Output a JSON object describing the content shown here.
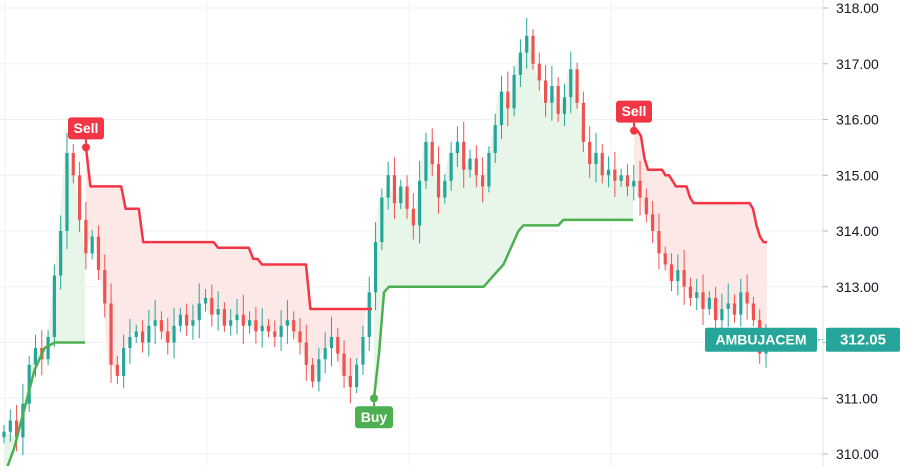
{
  "chart_data": {
    "type": "candlestick",
    "symbol": "AMBUJACEM",
    "last_price": "312.05",
    "ylim": [
      310.0,
      318.0
    ],
    "y_ticks": [
      "310.00",
      "311.00",
      "312.00",
      "313.00",
      "314.00",
      "315.00",
      "316.00",
      "317.00",
      "318.00"
    ],
    "grid": true,
    "price_axis": "right",
    "colors": {
      "up": "#26a69a",
      "down": "#ef5350",
      "sell_line": "#f23645",
      "buy_line": "#4caf50",
      "sell_fill": "#fde8e8",
      "buy_fill": "#e8f5e9",
      "label_text": "#ffffff",
      "axis_text": "#131722",
      "grid": "#eef0f3"
    },
    "candle_seed": [
      310.4,
      310.6,
      310.3,
      310.9,
      311.6,
      311.9,
      311.7,
      312.1,
      313.2,
      314.0,
      315.4,
      315.0,
      314.2,
      313.6,
      313.9,
      313.3,
      312.7,
      311.6,
      311.4,
      311.9,
      312.1,
      312.2,
      312.0,
      312.3,
      312.4,
      312.2,
      312.0,
      312.3,
      312.5,
      312.3,
      312.4,
      312.7,
      312.8,
      312.5,
      312.6,
      312.3,
      312.4,
      312.5,
      312.3,
      312.4,
      312.2,
      312.3,
      312.2,
      312.1,
      312.3,
      312.4,
      312.2,
      312.0,
      311.6,
      311.3,
      311.7,
      311.9,
      312.1,
      311.8,
      311.4,
      311.2,
      311.6,
      312.1,
      312.9,
      313.8,
      314.6,
      315.0,
      314.5,
      314.8,
      314.4,
      314.1,
      314.9,
      315.6,
      315.2,
      314.6,
      314.9,
      315.4,
      315.6,
      315.1,
      315.3,
      315.0,
      314.8,
      315.4,
      315.9,
      316.5,
      316.2,
      316.8,
      317.2,
      317.5,
      317.0,
      316.7,
      316.3,
      316.6,
      316.1,
      316.4,
      316.9,
      316.3,
      315.6,
      315.2,
      315.4,
      315.0,
      315.1,
      314.9,
      315.0,
      314.8,
      314.9,
      314.6,
      314.3,
      314.0,
      313.6,
      313.4,
      313.1,
      313.3,
      313.0,
      312.8,
      312.9,
      312.6,
      312.8,
      312.4,
      312.6,
      312.7,
      312.5,
      312.9,
      312.7,
      312.4,
      311.8,
      312.05
    ],
    "sell_level": [
      315.5,
      314.8,
      314.8,
      314.8,
      314.8,
      314.8,
      314.8,
      314.8,
      314.8,
      314.4,
      314.4,
      314.4,
      314.4,
      313.8,
      313.8,
      313.8,
      313.8,
      313.8,
      313.8,
      313.8,
      313.8,
      313.8,
      313.8,
      313.8,
      313.8,
      313.8,
      313.8,
      313.8,
      313.8,
      313.8,
      313.7,
      313.7,
      313.7,
      313.7,
      313.7,
      313.7,
      313.7,
      313.7,
      313.5,
      313.5,
      313.4,
      313.4,
      313.4,
      313.4,
      313.4,
      313.4,
      313.4,
      313.4,
      313.4,
      313.4,
      313.4,
      312.6,
      312.6,
      312.6,
      312.6,
      312.6,
      312.6,
      312.6,
      312.6,
      312.6,
      312.6,
      312.6,
      312.6,
      312.6,
      312.6,
      312.6
    ],
    "buy_level": [
      311.0,
      311.8,
      312.9,
      313.0,
      313.0,
      313.0,
      313.0,
      313.0,
      313.0,
      313.0,
      313.0,
      313.0,
      313.0,
      313.0,
      313.0,
      313.0,
      313.0,
      313.0,
      313.0,
      313.0,
      313.0,
      313.0,
      313.0,
      313.1,
      313.2,
      313.3,
      313.4,
      313.6,
      313.8,
      314.0,
      314.1,
      314.1,
      314.1,
      314.1,
      314.1,
      314.1,
      314.1,
      314.1,
      314.2,
      314.2,
      314.2,
      314.2,
      314.2,
      314.2,
      314.2,
      314.2,
      314.2,
      314.2,
      314.2,
      314.2,
      314.2,
      314.2,
      314.2
    ],
    "sell_level_2": [
      315.8,
      315.8,
      315.7,
      315.3,
      315.1,
      315.1,
      315.1,
      315.1,
      315.1,
      315.0,
      315.0,
      314.9,
      314.8,
      314.8,
      314.8,
      314.8,
      314.6,
      314.5,
      314.5,
      314.5,
      314.5,
      314.5,
      314.5,
      314.5,
      314.5,
      314.5,
      314.5,
      314.5,
      314.5,
      314.5,
      314.5,
      314.5,
      314.5,
      314.5,
      314.4,
      314.1,
      313.9,
      313.8,
      313.8
    ],
    "initial_buy_level": [
      309.6,
      310.1,
      310.8,
      311.5,
      311.9,
      312.0,
      312.0,
      312.0,
      312.0
    ],
    "signals": [
      {
        "label": "Sell",
        "kind": "sell",
        "price": 315.5
      },
      {
        "label": "Buy",
        "kind": "buy",
        "price": 311.0
      },
      {
        "label": "Sell",
        "kind": "sell",
        "price": 315.8
      }
    ]
  }
}
